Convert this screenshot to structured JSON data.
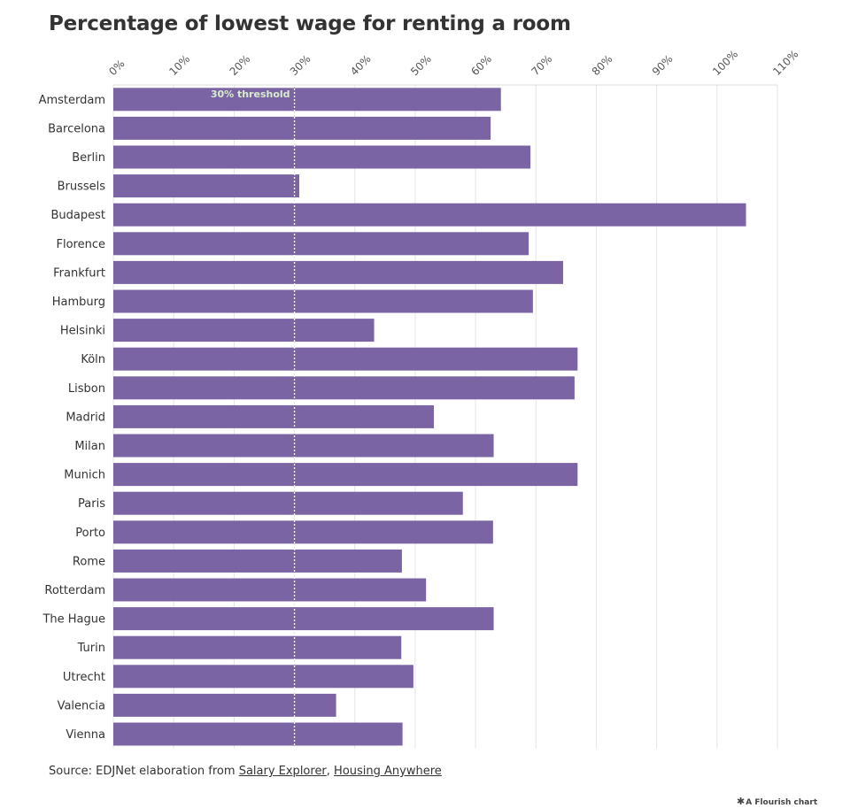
{
  "chart_data": {
    "type": "bar",
    "orientation": "horizontal",
    "title": "Percentage of lowest wage for renting a room",
    "xlabel": "",
    "ylabel": "",
    "xlim": [
      0,
      110
    ],
    "x_ticks": [
      0,
      10,
      20,
      30,
      40,
      50,
      60,
      70,
      80,
      90,
      100,
      110
    ],
    "x_tick_labels": [
      "0%",
      "10%",
      "20%",
      "30%",
      "40%",
      "50%",
      "60%",
      "70%",
      "80%",
      "90%",
      "100%",
      "110%"
    ],
    "tick_position": "top",
    "grid": true,
    "categories": [
      "Amsterdam",
      "Barcelona",
      "Berlin",
      "Brussels",
      "Budapest",
      "Florence",
      "Frankfurt",
      "Hamburg",
      "Helsinki",
      "Köln",
      "Lisbon",
      "Madrid",
      "Milan",
      "Munich",
      "Paris",
      "Porto",
      "Rome",
      "Rotterdam",
      "The Hague",
      "Turin",
      "Utrecht",
      "Valencia",
      "Vienna"
    ],
    "values": [
      64.2,
      62.5,
      69.1,
      30.8,
      104.8,
      68.8,
      74.5,
      69.5,
      43.2,
      76.9,
      76.4,
      53.1,
      63.0,
      76.9,
      57.9,
      62.9,
      47.8,
      51.8,
      63.0,
      47.7,
      49.7,
      36.9,
      47.9
    ],
    "bar_color": "#7b64a3",
    "annotation": {
      "value": 30,
      "label": "30% threshold",
      "line_color": "#ffffff",
      "label_color": "#d9ecd0"
    }
  },
  "footer": {
    "source_prefix": "Source: EDJNet elaboration from ",
    "link1": "Salary Explorer",
    "separator": ", ",
    "link2": "Housing Anywhere"
  },
  "credit": {
    "icon": "flourish-icon",
    "text": "A Flourish chart"
  }
}
